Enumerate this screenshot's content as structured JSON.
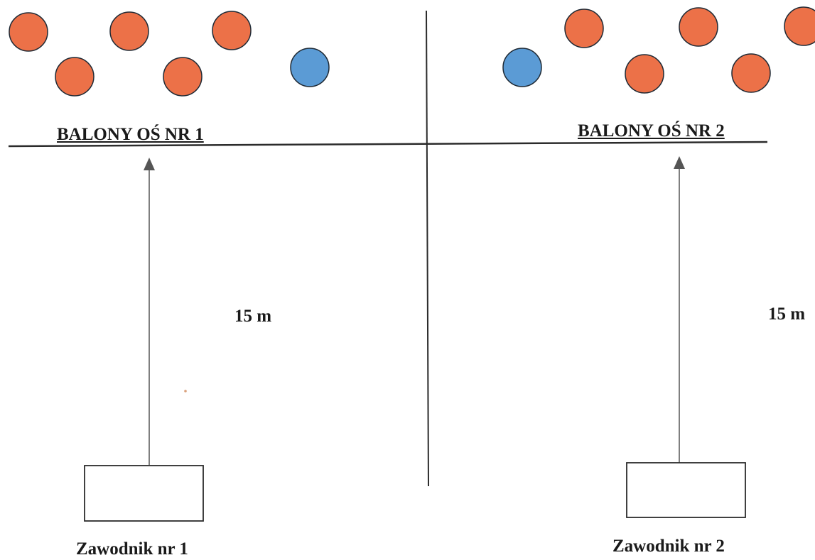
{
  "diagram": {
    "axes": [
      {
        "label": "BALONY OŚ NR 1",
        "distance_label": "15 m",
        "player_label": "Zawodnik nr 1",
        "balloons": [
          {
            "color": "orange"
          },
          {
            "color": "orange"
          },
          {
            "color": "orange"
          },
          {
            "color": "orange"
          },
          {
            "color": "orange"
          },
          {
            "color": "blue"
          }
        ]
      },
      {
        "label": "BALONY OŚ NR 2",
        "distance_label": "15 m",
        "player_label": "Zawodnik nr 2",
        "balloons": [
          {
            "color": "blue"
          },
          {
            "color": "orange"
          },
          {
            "color": "orange"
          },
          {
            "color": "orange"
          },
          {
            "color": "orange"
          },
          {
            "color": "orange"
          }
        ]
      }
    ],
    "colors": {
      "orange_balloon": "#ec7148",
      "blue_balloon": "#5b9bd5",
      "outline": "#1f2a35",
      "line": "#2b2b2b",
      "arrow": "#555555"
    }
  }
}
